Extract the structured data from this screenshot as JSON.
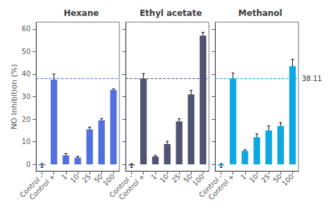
{
  "chart_data": [
    {
      "type": "bar",
      "title": "Hexane",
      "categories": [
        "Control -",
        "Control +",
        "1",
        "10",
        "25",
        "50",
        "100"
      ],
      "values": [
        -0.5,
        37.5,
        4.0,
        3.0,
        15.5,
        19.5,
        33.0
      ],
      "errors": [
        0.8,
        2.5,
        0.8,
        0.6,
        1.0,
        0.8,
        0.5
      ],
      "ylabel": "NO Inhibition (%)",
      "ylim": [
        -3,
        63
      ],
      "yticks": [
        0,
        10,
        20,
        30,
        40,
        50,
        60
      ],
      "grid": false,
      "hline": {
        "y": 38.11,
        "line_style": "dashed"
      }
    },
    {
      "type": "bar",
      "title": "Ethyl acetate",
      "categories": [
        "Control -",
        "Control +",
        "1",
        "10",
        "25",
        "50",
        "100"
      ],
      "values": [
        -0.5,
        38.0,
        3.5,
        9.0,
        19.0,
        31.0,
        57.0
      ],
      "errors": [
        0.8,
        2.2,
        0.5,
        1.2,
        1.2,
        1.8,
        1.5
      ],
      "ylim": [
        -3,
        63
      ],
      "yticks": [
        0,
        10,
        20,
        30,
        40,
        50,
        60
      ],
      "grid": false,
      "tick_labels": "x",
      "hline": {
        "y": 38.11,
        "line_style": "dashed"
      }
    },
    {
      "type": "bar",
      "title": "Methanol",
      "categories": [
        "Control -",
        "Control +",
        "1",
        "10",
        "25",
        "50",
        "100"
      ],
      "values": [
        -0.5,
        38.0,
        6.0,
        12.0,
        15.0,
        17.0,
        43.5
      ],
      "errors": [
        0.8,
        2.5,
        0.5,
        1.5,
        2.0,
        1.5,
        3.0
      ],
      "ylim": [
        -3,
        63
      ],
      "yticks": [
        0,
        10,
        20,
        30,
        40,
        50,
        60
      ],
      "grid": false,
      "tick_labels": "x",
      "hline": {
        "y": 38.11,
        "label": "38.11",
        "line_style": "dashed"
      }
    }
  ]
}
